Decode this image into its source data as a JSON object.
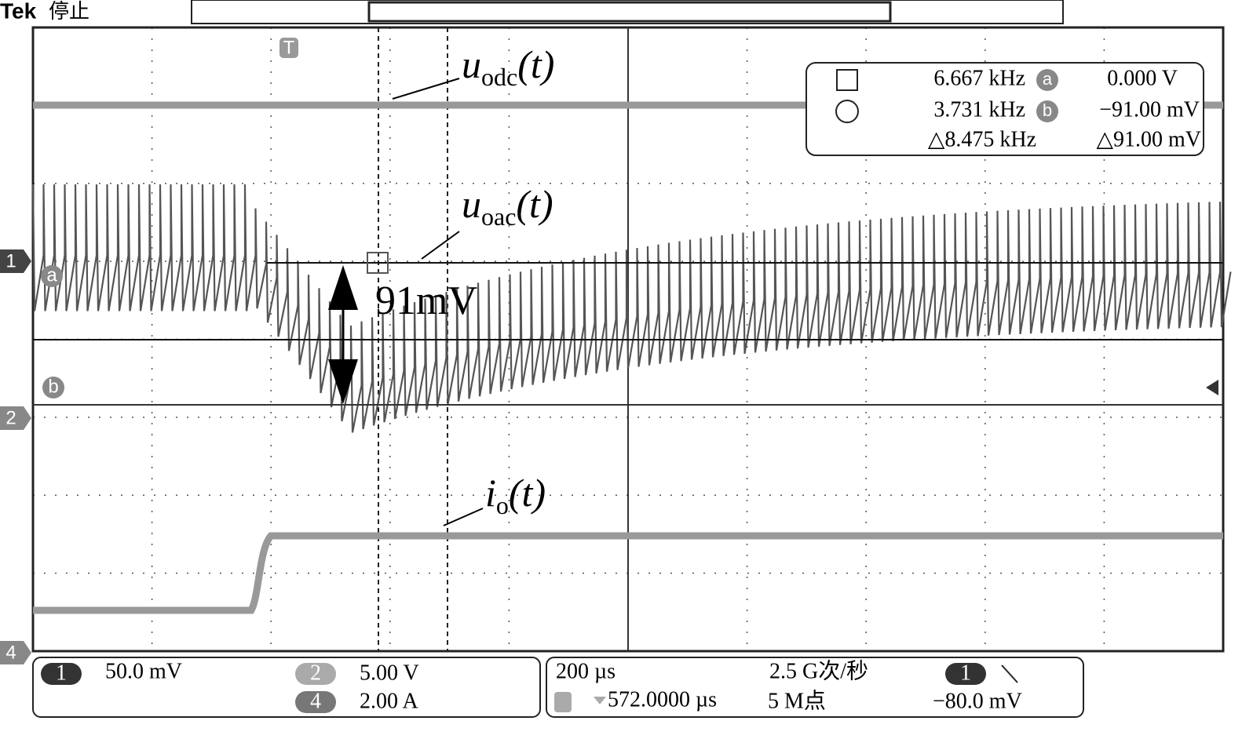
{
  "header": {
    "brand": "Tek",
    "status": "停止"
  },
  "markers": {
    "trigger": "T",
    "ch1": "1",
    "cursor_a": "a",
    "cursor_b": "b",
    "ch2": "2",
    "ch4": "4"
  },
  "annotations": {
    "uodc": {
      "var": "u",
      "sub": "odc",
      "arg": "(t)"
    },
    "uoac": {
      "var": "u",
      "sub": "oac",
      "arg": "(t)"
    },
    "io": {
      "var": "i",
      "sub": "o",
      "arg": "(t)"
    },
    "delta": "91mV"
  },
  "readout": {
    "freq_a": "6.667 kHz",
    "tag_a": "a",
    "val_a": "0.000 V",
    "freq_b": "3.731 kHz",
    "tag_b": "b",
    "val_b": "−91.00 mV",
    "delta_freq": "△8.475 kHz",
    "delta_val": "△91.00 mV"
  },
  "status": {
    "ch1_badge": "1",
    "ch1_scale": "50.0 mV",
    "ch2_badge": "2",
    "ch2_scale": "5.00 V",
    "ch4_badge": "4",
    "ch4_scale": "2.00 A",
    "timebase": "200 µs",
    "sample_rate": "2.5 G次/秒",
    "trig_badge": "1",
    "trig_pos": "572.0000 µs",
    "record": "5 M点",
    "trig_level": "−80.0 mV"
  }
}
